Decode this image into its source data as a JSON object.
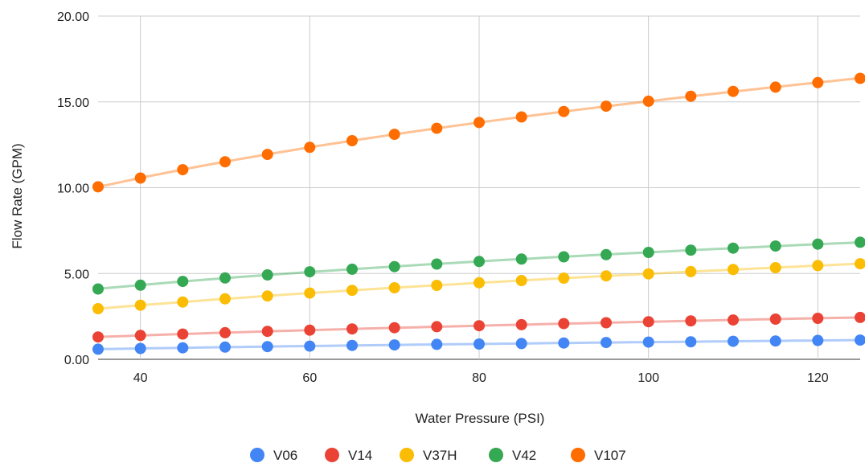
{
  "chart_data": {
    "type": "scatter",
    "title": "",
    "xlabel": "Water Pressure (PSI)",
    "ylabel": "Flow Rate (GPM)",
    "xlim": [
      35,
      125
    ],
    "ylim": [
      0,
      20
    ],
    "x_ticks": [
      {
        "value": 40,
        "label": "40"
      },
      {
        "value": 60,
        "label": "60"
      },
      {
        "value": 80,
        "label": "80"
      },
      {
        "value": 100,
        "label": "100"
      },
      {
        "value": 120,
        "label": "120"
      }
    ],
    "y_ticks": [
      {
        "value": 0,
        "label": "0.00"
      },
      {
        "value": 5,
        "label": "5.00"
      },
      {
        "value": 10,
        "label": "10.00"
      },
      {
        "value": 15,
        "label": "15.00"
      },
      {
        "value": 20,
        "label": "20.00"
      }
    ],
    "grid": true,
    "legend_position": "bottom",
    "trendlines": true,
    "x": [
      35,
      40,
      45,
      50,
      55,
      60,
      65,
      70,
      75,
      80,
      85,
      90,
      95,
      100,
      105,
      110,
      115,
      120,
      125
    ],
    "series": [
      {
        "name": "V06",
        "color": "#4285F4",
        "values": [
          0.59,
          0.63,
          0.67,
          0.71,
          0.74,
          0.77,
          0.81,
          0.84,
          0.87,
          0.89,
          0.92,
          0.95,
          0.98,
          1.0,
          1.02,
          1.05,
          1.07,
          1.1,
          1.12
        ]
      },
      {
        "name": "V14",
        "color": "#EA4335",
        "values": [
          1.3,
          1.39,
          1.47,
          1.55,
          1.63,
          1.7,
          1.77,
          1.84,
          1.9,
          1.96,
          2.02,
          2.08,
          2.13,
          2.19,
          2.24,
          2.29,
          2.34,
          2.39,
          2.44
        ]
      },
      {
        "name": "V37H",
        "color": "#FBBC04",
        "values": [
          2.95,
          3.15,
          3.34,
          3.52,
          3.69,
          3.86,
          4.02,
          4.17,
          4.31,
          4.46,
          4.59,
          4.73,
          4.86,
          4.98,
          5.11,
          5.23,
          5.34,
          5.46,
          5.57
        ]
      },
      {
        "name": "V42",
        "color": "#34A853",
        "values": [
          4.1,
          4.32,
          4.54,
          4.74,
          4.92,
          5.1,
          5.25,
          5.4,
          5.55,
          5.7,
          5.84,
          5.97,
          6.1,
          6.23,
          6.36,
          6.48,
          6.6,
          6.71,
          6.82
        ]
      },
      {
        "name": "V107",
        "color": "#FF6D01",
        "values": [
          10.05,
          10.56,
          11.05,
          11.51,
          11.94,
          12.35,
          12.74,
          13.11,
          13.46,
          13.8,
          14.12,
          14.44,
          14.75,
          15.04,
          15.33,
          15.61,
          15.86,
          16.12,
          16.37
        ]
      }
    ]
  }
}
